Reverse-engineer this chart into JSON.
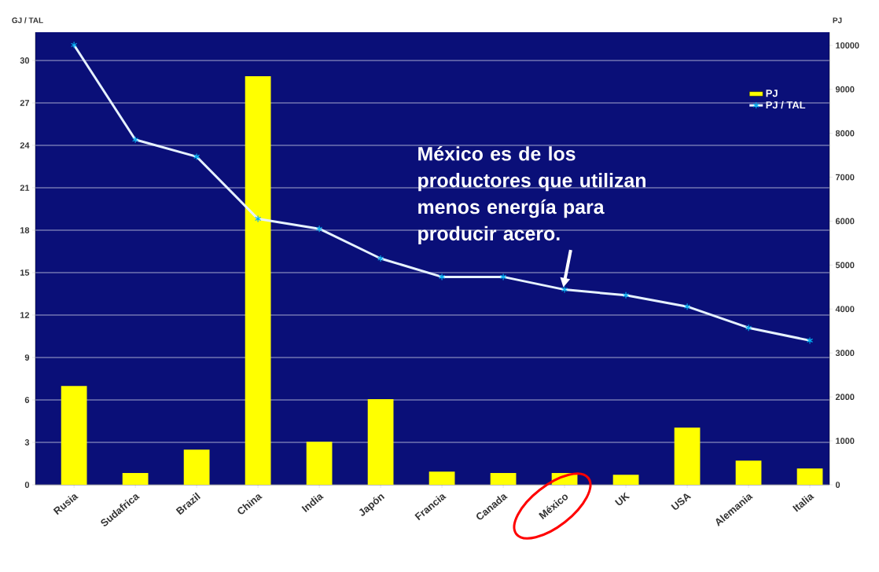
{
  "chart_data": {
    "type": "bar",
    "ylabel": "GJ / TAL",
    "y2label": "PJ",
    "categories": [
      "Rusia",
      "Sudafrica",
      "Brazil",
      "China",
      "India",
      "Japón",
      "Francia",
      "Canada",
      "México",
      "UK",
      "USA",
      "Alemania",
      "Italia"
    ],
    "series": [
      {
        "name": "PJ",
        "axis": "y2",
        "color": "#ffff00",
        "values": [
          2250,
          270,
          800,
          9300,
          980,
          1950,
          300,
          270,
          270,
          230,
          1300,
          550,
          370
        ]
      },
      {
        "name": "PJ / TAL",
        "type": "line",
        "color": "#e6f2ff",
        "marker": "cross",
        "values": [
          31.1,
          24.4,
          23.2,
          18.8,
          18.1,
          16.0,
          14.7,
          14.7,
          13.8,
          13.4,
          12.6,
          11.1,
          10.2
        ]
      }
    ],
    "ylim": [
      0,
      32
    ],
    "yticks": [
      0,
      3,
      6,
      9,
      12,
      15,
      18,
      21,
      24,
      27,
      30
    ],
    "y2lim": [
      0,
      10300
    ],
    "y2ticks": [
      0,
      1000,
      2000,
      3000,
      4000,
      5000,
      6000,
      7000,
      8000,
      9000,
      10000
    ],
    "grid": "y",
    "legend": "top right",
    "annotations": [
      {
        "text": "México es de los productores que utilizan menos energía para producir acero.",
        "x": "México",
        "y": 13.8
      }
    ]
  }
}
